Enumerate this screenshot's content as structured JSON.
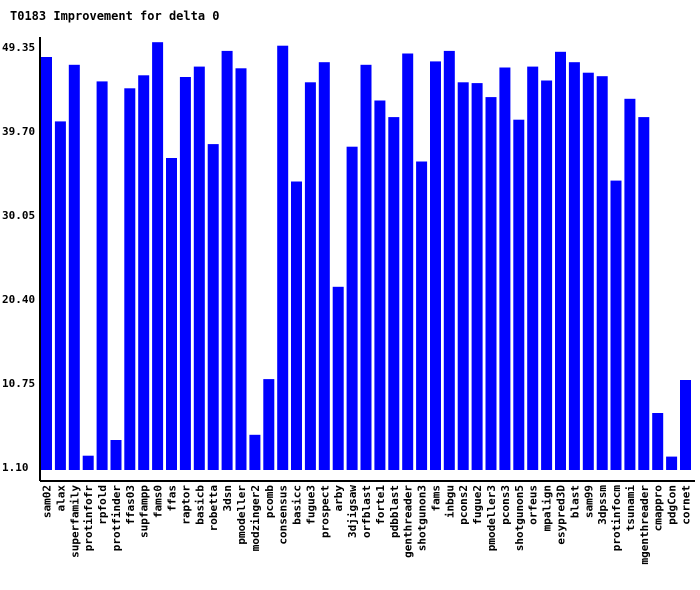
{
  "chart_data": {
    "type": "bar",
    "title": "T0183 Improvement for delta 0",
    "xlabel": "",
    "ylabel": "",
    "ylim": [
      1.1,
      49.35
    ],
    "yticks": [
      "1.10",
      "10.75",
      "20.40",
      "30.05",
      "39.70",
      "49.35"
    ],
    "bar_color": "#0000ff",
    "categories": [
      "sam02",
      "alax",
      "superfamily",
      "protinfofr",
      "rpfold",
      "protfinder",
      "ffas03",
      "supfampp",
      "fams0",
      "ffas",
      "raptor",
      "basicb",
      "robetta",
      "3dsn",
      "pmodeller",
      "modzinger2",
      "pcomb",
      "consensus",
      "basicc",
      "fugue3",
      "prospect",
      "arby",
      "3djigsaw",
      "orfblast",
      "forte1",
      "pdbblast",
      "genthreader",
      "shotgunon3",
      "fams",
      "inbgu",
      "pcons2",
      "fugue2",
      "pmodeller3",
      "pcons3",
      "shotgunon5",
      "orfeus",
      "mpalign",
      "esypred3D",
      "blast",
      "sam99",
      "3dpssm",
      "protinfocm",
      "tsunami",
      "mgenthreader",
      "cmappro",
      "pdgCon",
      "cornet"
    ],
    "values": [
      48.2,
      40.8,
      47.3,
      2.4,
      45.4,
      4.2,
      44.6,
      46.1,
      49.9,
      36.6,
      45.9,
      47.1,
      38.2,
      48.9,
      46.9,
      4.8,
      11.2,
      49.5,
      33.9,
      45.3,
      47.6,
      21.8,
      37.9,
      47.3,
      43.2,
      41.3,
      48.6,
      36.2,
      47.7,
      48.9,
      45.3,
      45.2,
      43.6,
      47.0,
      41.0,
      47.1,
      45.5,
      48.8,
      47.6,
      46.4,
      46.0,
      34.0,
      43.4,
      41.3,
      7.3,
      2.3,
      11.1
    ]
  }
}
